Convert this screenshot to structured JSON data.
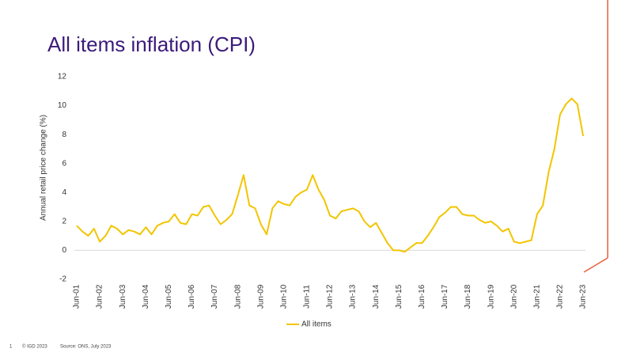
{
  "chart_data": {
    "type": "line",
    "title": "All items inflation (CPI)",
    "y_label": "Annual retail price change (%)",
    "categories": [
      "Jun-01",
      null,
      null,
      null,
      "Jun-02",
      null,
      null,
      null,
      "Jun-03",
      null,
      null,
      null,
      "Jun-04",
      null,
      null,
      null,
      "Jun-05",
      null,
      null,
      null,
      "Jun-06",
      null,
      null,
      null,
      "Jun-07",
      null,
      null,
      null,
      "Jun-08",
      null,
      null,
      null,
      "Jun-09",
      null,
      null,
      null,
      "Jun-10",
      null,
      null,
      null,
      "Jun-11",
      null,
      null,
      null,
      "Jun-12",
      null,
      null,
      null,
      "Jun-13",
      null,
      null,
      null,
      "Jun-14",
      null,
      null,
      null,
      "Jun-15",
      null,
      null,
      null,
      "Jun-16",
      null,
      null,
      null,
      "Jun-17",
      null,
      null,
      null,
      "Jun-18",
      null,
      null,
      null,
      "Jun-19",
      null,
      null,
      null,
      "Jun-20",
      null,
      null,
      null,
      "Jun-21",
      null,
      null,
      null,
      "Jun-22",
      null,
      null,
      null,
      "Jun-23"
    ],
    "series": [
      {
        "name": "All items",
        "color": "#f2c500",
        "values": [
          1.7,
          1.3,
          1.0,
          1.5,
          0.6,
          1.0,
          1.7,
          1.5,
          1.1,
          1.4,
          1.3,
          1.1,
          1.6,
          1.1,
          1.7,
          1.9,
          2.0,
          2.5,
          1.9,
          1.8,
          2.5,
          2.4,
          3.0,
          3.1,
          2.4,
          1.8,
          2.1,
          2.5,
          3.8,
          5.2,
          3.1,
          2.9,
          1.8,
          1.1,
          2.9,
          3.4,
          3.2,
          3.1,
          3.7,
          4.0,
          4.2,
          5.2,
          4.2,
          3.5,
          2.4,
          2.2,
          2.7,
          2.8,
          2.9,
          2.7,
          2.0,
          1.6,
          1.9,
          1.2,
          0.5,
          0.0,
          0.0,
          -0.1,
          0.2,
          0.5,
          0.5,
          1.0,
          1.6,
          2.3,
          2.6,
          3.0,
          3.0,
          2.5,
          2.4,
          2.4,
          2.1,
          1.9,
          2.0,
          1.7,
          1.3,
          1.5,
          0.6,
          0.5,
          0.6,
          0.7,
          2.5,
          3.1,
          5.4,
          7.0,
          9.4,
          10.1,
          10.5,
          10.1,
          7.9
        ]
      }
    ],
    "ylim": [
      -2,
      12
    ],
    "yticks": [
      -2,
      0,
      2,
      4,
      6,
      8,
      10,
      12
    ],
    "grid": false,
    "legend": "bottom"
  },
  "footer": {
    "page": "1",
    "copyright": "© IGD 2023",
    "source": "Source: ONS, July 2023"
  }
}
